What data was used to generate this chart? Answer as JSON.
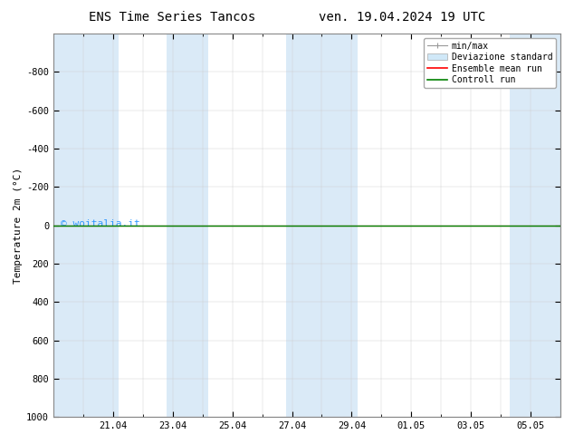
{
  "title_left": "ENS Time Series Tancos",
  "title_right": "ven. 19.04.2024 19 UTC",
  "ylabel": "Temperature 2m (°C)",
  "watermark": "© woitalia.it",
  "ylim_bottom": 1000,
  "ylim_top": -1000,
  "yticks": [
    -800,
    -600,
    -400,
    -200,
    0,
    200,
    400,
    600,
    800,
    1000
  ],
  "xtick_labels": [
    "21.04",
    "23.04",
    "25.04",
    "27.04",
    "29.04",
    "01.05",
    "03.05",
    "05.05"
  ],
  "xmin": 0.0,
  "xmax": 17.0,
  "shaded_bands": [
    [
      0.0,
      2.2
    ],
    [
      3.8,
      5.2
    ],
    [
      7.8,
      10.2
    ],
    [
      15.3,
      17.0
    ]
  ],
  "shaded_color": "#daeaf7",
  "legend_entries": [
    {
      "label": "min/max",
      "type": "errorbar",
      "color": "#aaaaaa"
    },
    {
      "label": "Deviazione standard",
      "type": "bar",
      "color": "#c8dff0"
    },
    {
      "label": "Ensemble mean run",
      "type": "line",
      "color": "red"
    },
    {
      "label": "Controll run",
      "type": "line",
      "color": "green"
    }
  ],
  "background_color": "#ffffff",
  "title_fontsize": 10,
  "axis_fontsize": 8,
  "tick_fontsize": 7.5,
  "watermark_color": "#3399ff",
  "spine_color": "#888888",
  "green_line_y": 0,
  "red_line_y": 0
}
